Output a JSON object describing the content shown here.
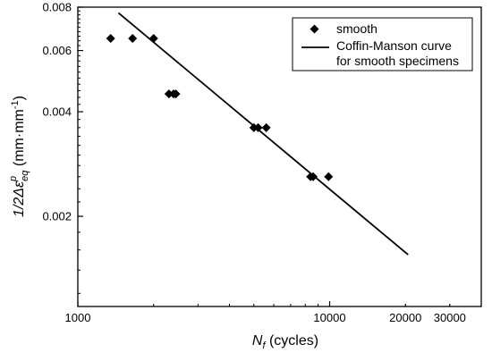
{
  "chart_data": {
    "type": "scatter",
    "title": "",
    "x_scale": "log",
    "y_scale": "log",
    "xlim": [
      1000,
      40000
    ],
    "ylim": [
      0.0011,
      0.008
    ],
    "x_ticks": [
      1000,
      10000,
      20000,
      30000
    ],
    "x_tick_labels": [
      "1000",
      "10000",
      "20000",
      "30000"
    ],
    "y_ticks": [
      0.002,
      0.004,
      0.006,
      0.008
    ],
    "y_tick_labels": [
      "0.002",
      "0.004",
      "0.006",
      "0.008"
    ],
    "xlabel_main": "N",
    "xlabel_sub": "f",
    "xlabel_rest": " (cycles)",
    "ylabel_prefix": "1/2Δε",
    "ylabel_sup": "p",
    "ylabel_sub": "eq",
    "ylabel_rest": " (mm·mm",
    "ylabel_exp": "-1",
    "ylabel_close": ")",
    "grid": false,
    "legend_position": "top-right",
    "series": [
      {
        "name": "smooth",
        "marker": "diamond",
        "color": "#000000",
        "x": [
          1350,
          1650,
          2000,
          2300,
          2400,
          2450,
          5000,
          5200,
          5600,
          8400,
          8600,
          9900
        ],
        "y": [
          0.0065,
          0.0065,
          0.0065,
          0.0045,
          0.0045,
          0.0045,
          0.0036,
          0.0036,
          0.0036,
          0.0026,
          0.0026,
          0.0026
        ]
      },
      {
        "name": "Coffin-Manson curve for smooth specimens",
        "legend_lines": [
          "Coffin-Manson curve",
          "for smooth specimens"
        ],
        "type": "line",
        "color": "#000000",
        "x": [
          1450,
          20500
        ],
        "y": [
          0.0077,
          0.00155
        ]
      }
    ]
  }
}
